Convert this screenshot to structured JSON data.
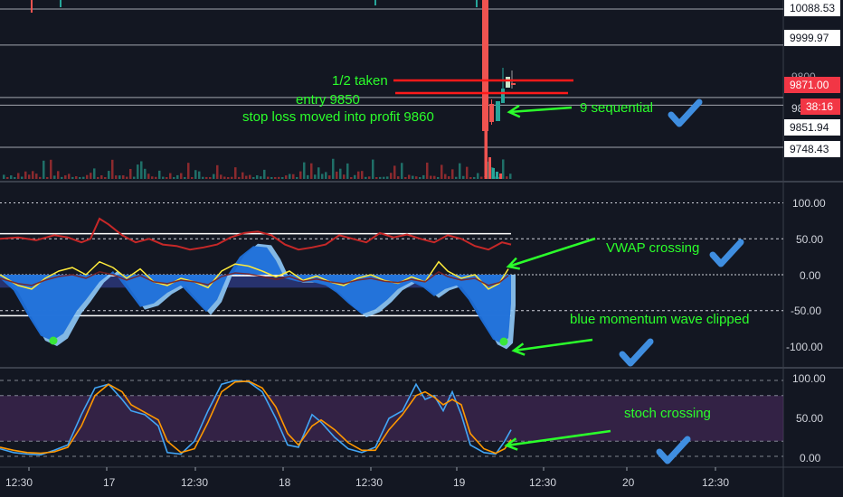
{
  "chart_data": [
    {
      "type": "candlestick",
      "pane": "price",
      "price_labels": [
        "10088.53",
        "9999.97",
        "9871.00",
        "9851.94",
        "9748.43"
      ],
      "current_price": "9871.00",
      "countdown": "38:16",
      "partial_labels": [
        "9800",
        "98"
      ],
      "levels_drawn": [
        10088.53,
        9999.97,
        9871.0,
        9851.94,
        9748.43
      ],
      "red_lines": [
        "1/2 taken",
        "entry 9850"
      ]
    },
    {
      "type": "line",
      "pane": "momentum",
      "y_ticks": [
        "100.00",
        "50.00",
        "0.00",
        "-50.00",
        "-100.00"
      ],
      "ylim": [
        -110,
        110
      ],
      "series": [
        {
          "key": "rsi",
          "color": "#c62828"
        },
        {
          "key": "vwap",
          "color": "#ffeb3b"
        },
        {
          "key": "wave1",
          "color": "#1e6fd9"
        },
        {
          "key": "wave2",
          "color": "#90caf9"
        }
      ]
    },
    {
      "type": "line",
      "pane": "stochastic",
      "y_ticks": [
        "100.00",
        "50.00",
        "0.00"
      ],
      "ylim": [
        -5,
        105
      ],
      "series": [
        {
          "key": "k",
          "color": "#42a5f5"
        },
        {
          "key": "d",
          "color": "#ff9800"
        }
      ]
    }
  ],
  "x_axis": [
    "12:30",
    "17",
    "12:30",
    "18",
    "12:30",
    "19",
    "12:30",
    "20",
    "12:30"
  ],
  "annotations": {
    "half_taken": "1/2 taken",
    "entry": "entry 9850",
    "stop_loss": "stop loss moved into profit 9860",
    "nine_sequential": "9 sequential",
    "vwap_crossing": "VWAP crossing",
    "blue_wave": "blue momentum wave clipped",
    "stoch_crossing": "stoch crossing"
  },
  "colors": {
    "background": "#131722",
    "annotation": "#2bff2b",
    "check": "#3f8ee0",
    "red_line": "#ff1a1a",
    "up_candle": "#26a69a",
    "down_candle": "#ef5350"
  }
}
